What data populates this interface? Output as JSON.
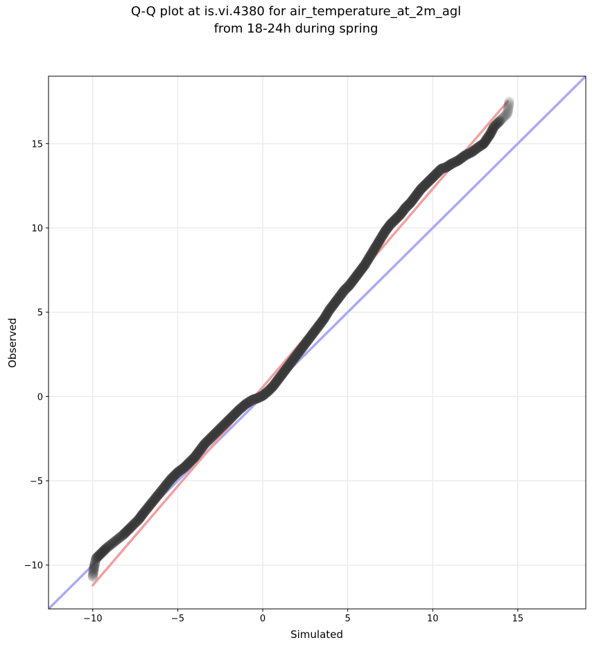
{
  "chart_data": {
    "type": "scatter",
    "title_line1": "Q-Q plot at is.vi.4380 for air_temperature_at_2m_agl",
    "title_line2": "from 18-24h during spring",
    "xlabel": "Simulated",
    "ylabel": "Observed",
    "xlim": [
      -12.6,
      19.0
    ],
    "ylim": [
      -12.6,
      19.0
    ],
    "xticks": [
      -10,
      -5,
      0,
      5,
      10,
      15
    ],
    "yticks": [
      -10,
      -5,
      0,
      5,
      10,
      15
    ],
    "xtick_labels": [
      "−10",
      "−5",
      "0",
      "5",
      "10",
      "15"
    ],
    "ytick_labels": [
      "−10",
      "−5",
      "0",
      "5",
      "10",
      "15"
    ],
    "grid": true,
    "identity_line": {
      "slope": 1,
      "intercept": 0,
      "color": "#aaaaf4"
    },
    "fit_line": {
      "x": [
        -10.0,
        14.4
      ],
      "y": [
        -11.2,
        17.5
      ],
      "color": "#f0a0a0"
    },
    "quantiles": {
      "x": [
        -10.0,
        -9.95,
        -9.9,
        -9.8,
        -9.5,
        -9.2,
        -8.7,
        -8.2,
        -7.8,
        -7.3,
        -7.0,
        -6.6,
        -6.2,
        -5.8,
        -5.4,
        -5.0,
        -4.6,
        -4.3,
        -4.0,
        -3.7,
        -3.4,
        -3.0,
        -2.6,
        -2.2,
        -1.8,
        -1.4,
        -1.0,
        -0.6,
        -0.3,
        0.0,
        0.3,
        0.6,
        0.9,
        1.2,
        1.5,
        1.8,
        2.1,
        2.4,
        2.7,
        3.0,
        3.3,
        3.6,
        3.9,
        4.2,
        4.5,
        4.8,
        5.1,
        5.4,
        5.7,
        6.0,
        6.3,
        6.6,
        6.9,
        7.2,
        7.5,
        7.8,
        8.1,
        8.4,
        8.7,
        9.0,
        9.3,
        9.6,
        9.9,
        10.2,
        10.5,
        10.8,
        11.1,
        11.5,
        11.9,
        12.3,
        12.7,
        13.0,
        13.2,
        13.4,
        13.6,
        14.0,
        14.4,
        14.5
      ],
      "y": [
        -10.7,
        -10.3,
        -10.0,
        -9.6,
        -9.3,
        -9.0,
        -8.6,
        -8.2,
        -7.8,
        -7.3,
        -6.9,
        -6.4,
        -5.9,
        -5.4,
        -4.9,
        -4.5,
        -4.2,
        -3.9,
        -3.6,
        -3.2,
        -2.8,
        -2.4,
        -2.0,
        -1.6,
        -1.2,
        -0.8,
        -0.45,
        -0.2,
        -0.1,
        0.05,
        0.3,
        0.6,
        1.0,
        1.4,
        1.8,
        2.2,
        2.6,
        3.0,
        3.4,
        3.8,
        4.2,
        4.6,
        5.1,
        5.5,
        5.9,
        6.3,
        6.6,
        7.0,
        7.4,
        7.8,
        8.3,
        8.8,
        9.3,
        9.8,
        10.2,
        10.5,
        10.8,
        11.2,
        11.5,
        11.9,
        12.3,
        12.6,
        12.9,
        13.2,
        13.5,
        13.6,
        13.8,
        14.0,
        14.3,
        14.5,
        14.8,
        15.0,
        15.3,
        15.6,
        16.0,
        16.4,
        16.8,
        17.5
      ]
    }
  }
}
